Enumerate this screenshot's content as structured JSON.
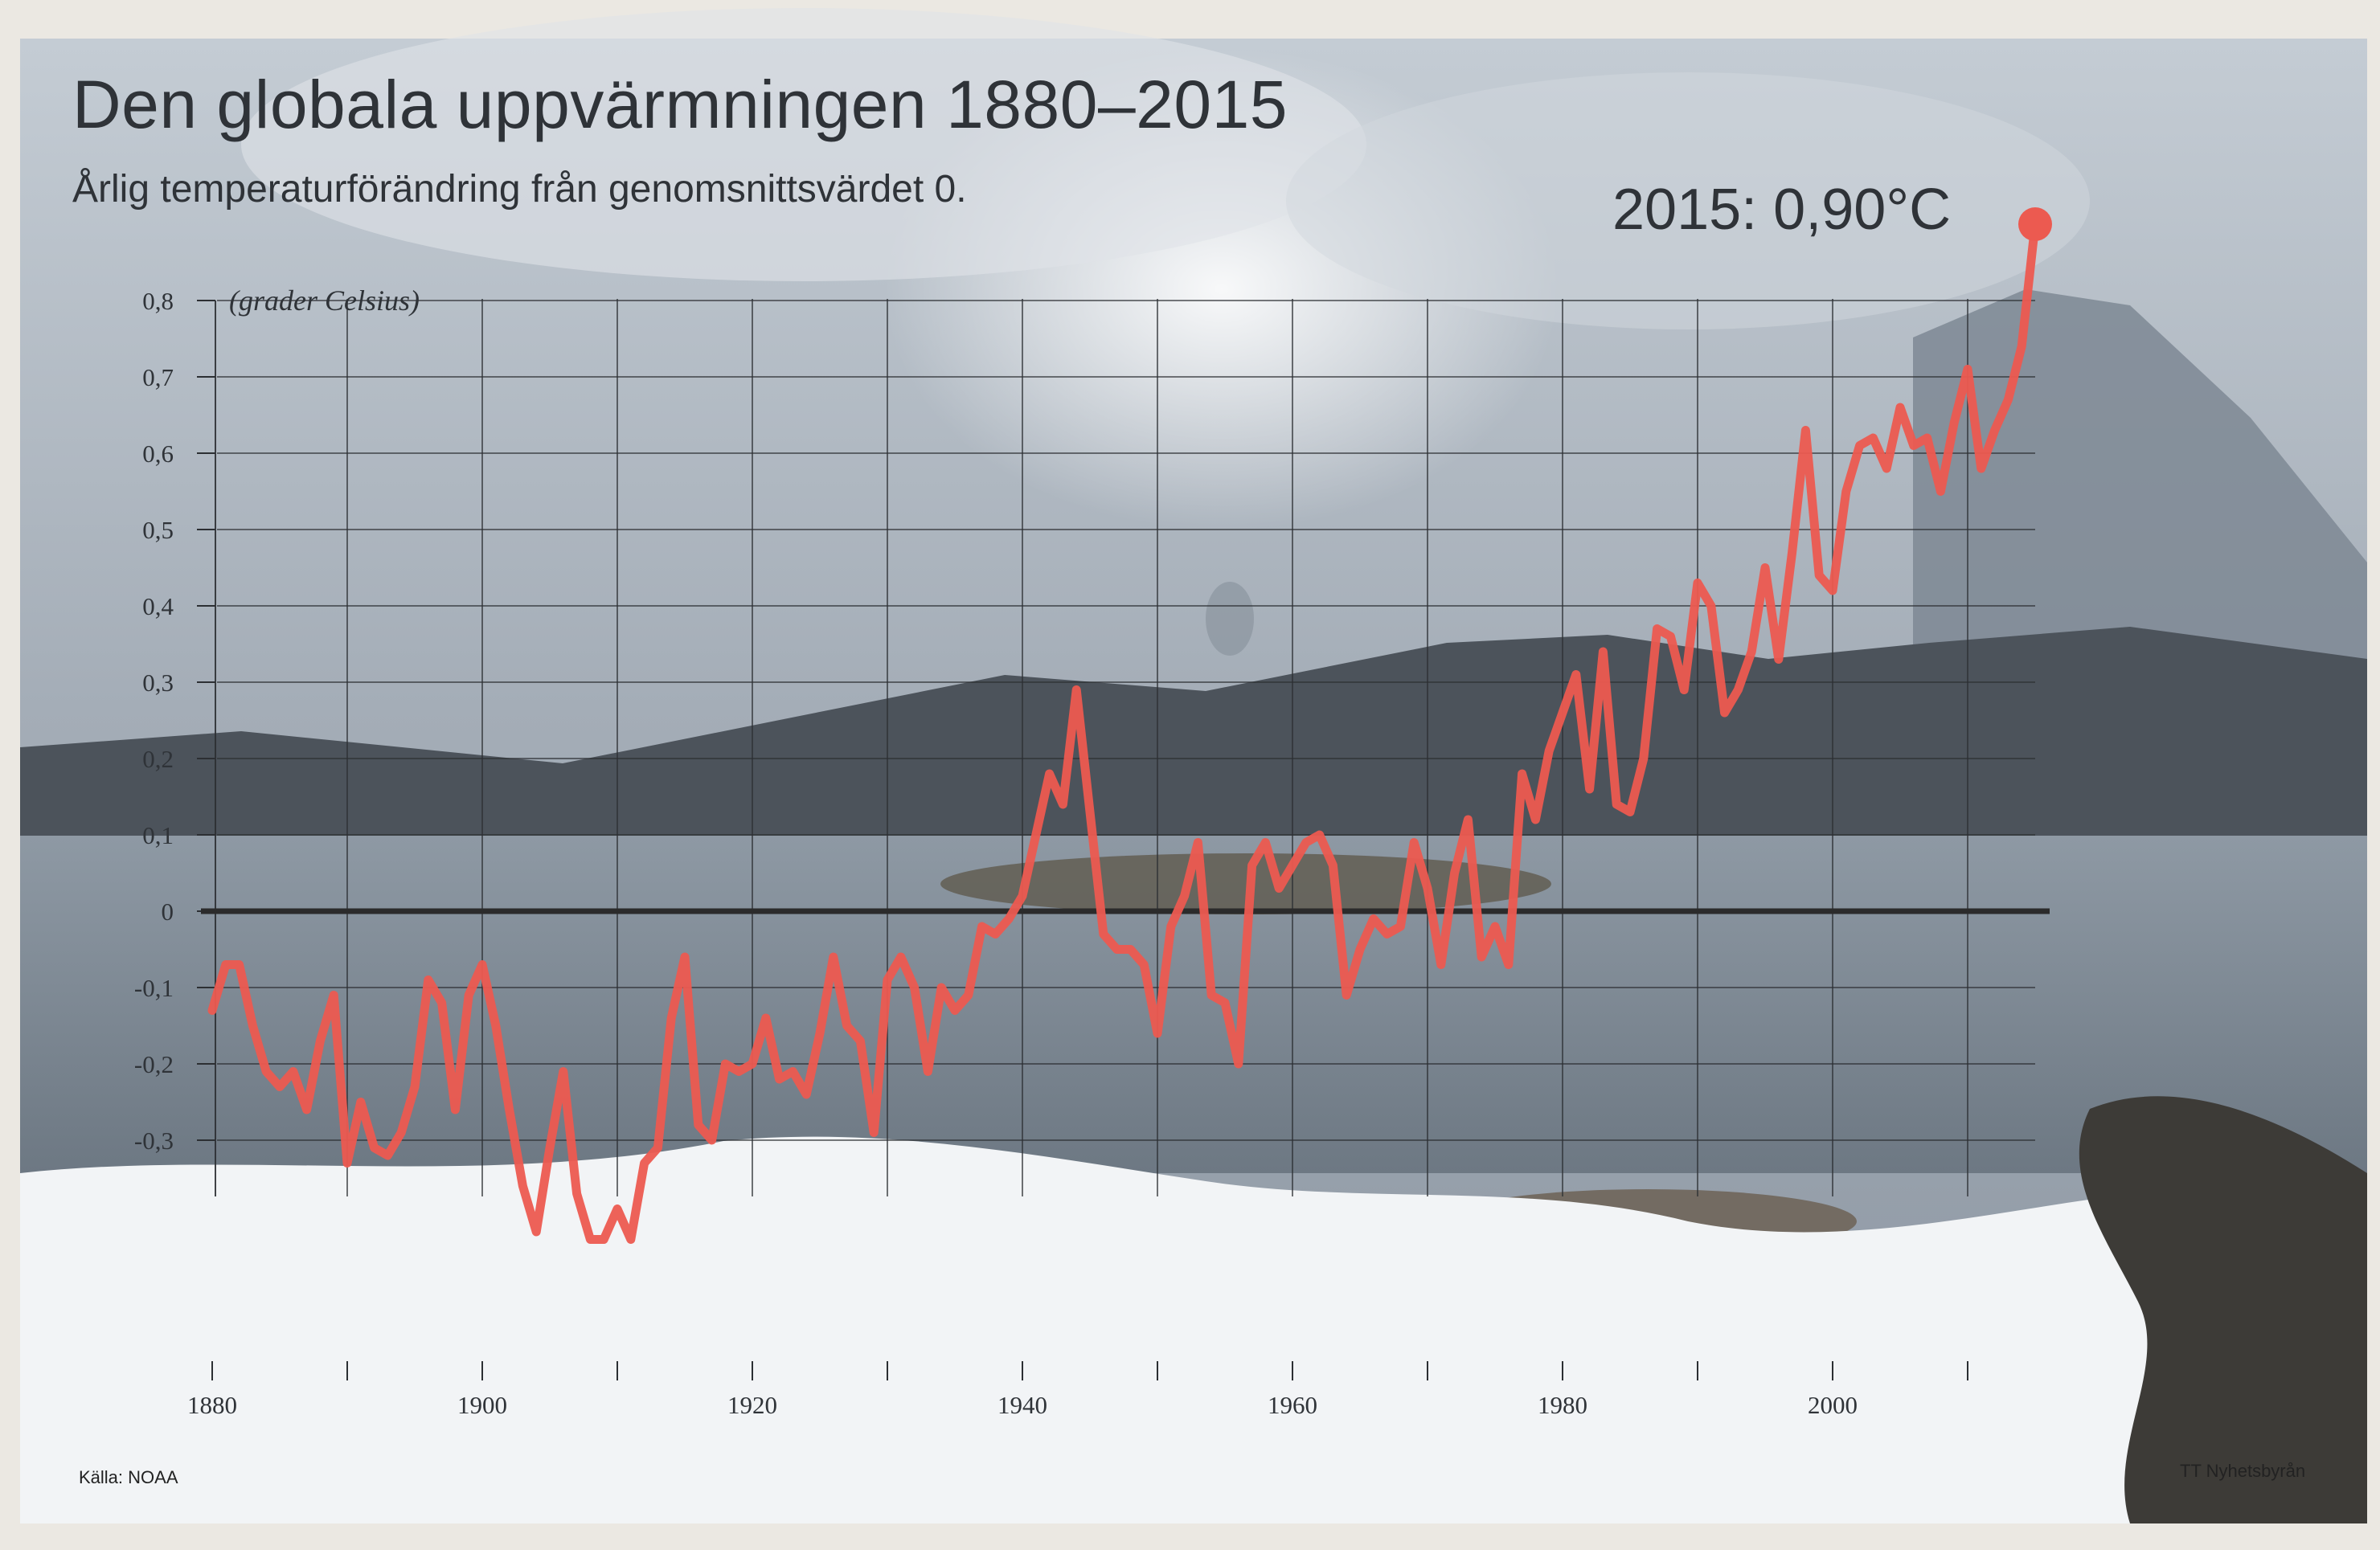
{
  "title": "Den globala uppvärmningen 1880–2015",
  "subtitle": "Årlig temperaturförändring från genomsnittsvärdet 0.",
  "callout": "2015: 0,90°C",
  "source": "Källa: NOAA",
  "credit": "TT Nyhetsbyrån",
  "colors": {
    "line": "#ec5a50",
    "axis": "#2b2b2b",
    "grid": "#2c2f33",
    "text": "#2f3338"
  },
  "chart_data": {
    "type": "line",
    "title": "Den globala uppvärmningen 1880–2015",
    "subtitle": "Årlig temperaturförändring från genomsnittsvärdet 0.",
    "ylabel": "(grader Celsius)",
    "xlabel": "",
    "xlim": [
      1880,
      2015
    ],
    "ylim": [
      -0.4,
      0.8
    ],
    "grid": true,
    "x_ticks": [
      1880,
      1900,
      1920,
      1940,
      1960,
      1980,
      2000
    ],
    "y_ticks": [
      {
        "value": 0.8,
        "label": "0,8"
      },
      {
        "value": 0.7,
        "label": "0,7"
      },
      {
        "value": 0.6,
        "label": "0,6"
      },
      {
        "value": 0.5,
        "label": "0,5"
      },
      {
        "value": 0.4,
        "label": "0,4"
      },
      {
        "value": 0.3,
        "label": "0,3"
      },
      {
        "value": 0.2,
        "label": "0,2"
      },
      {
        "value": 0.1,
        "label": "0,1"
      },
      {
        "value": 0,
        "label": "0"
      },
      {
        "value": -0.1,
        "label": "-0,1"
      },
      {
        "value": -0.2,
        "label": "-0,2"
      },
      {
        "value": -0.3,
        "label": "-0,3"
      }
    ],
    "highlight": {
      "x": 2015,
      "y": 0.9,
      "label": "2015: 0,90°C"
    },
    "series": [
      {
        "x": [
          1880,
          1881,
          1882,
          1883,
          1884,
          1885,
          1886,
          1887,
          1888,
          1889,
          1890,
          1891,
          1892,
          1893,
          1894,
          1895,
          1896,
          1897,
          1898,
          1899,
          1900,
          1901,
          1902,
          1903,
          1904,
          1905,
          1906,
          1907,
          1908,
          1909,
          1910,
          1911,
          1912,
          1913,
          1914,
          1915,
          1916,
          1917,
          1918,
          1919,
          1920,
          1921,
          1922,
          1923,
          1924,
          1925,
          1926,
          1927,
          1928,
          1929,
          1930,
          1931,
          1932,
          1933,
          1934,
          1935,
          1936,
          1937,
          1938,
          1939,
          1940,
          1941,
          1942,
          1943,
          1944,
          1945,
          1946,
          1947,
          1948,
          1949,
          1950,
          1951,
          1952,
          1953,
          1954,
          1955,
          1956,
          1957,
          1958,
          1959,
          1960,
          1961,
          1962,
          1963,
          1964,
          1965,
          1966,
          1967,
          1968,
          1969,
          1970,
          1971,
          1972,
          1973,
          1974,
          1975,
          1976,
          1977,
          1978,
          1979,
          1980,
          1981,
          1982,
          1983,
          1984,
          1985,
          1986,
          1987,
          1988,
          1989,
          1990,
          1991,
          1992,
          1993,
          1994,
          1995,
          1996,
          1997,
          1998,
          1999,
          2000,
          2001,
          2002,
          2003,
          2004,
          2005,
          2006,
          2007,
          2008,
          2009,
          2010,
          2011,
          2012,
          2013,
          2014,
          2015
        ],
        "y": [
          -0.13,
          -0.07,
          -0.07,
          -0.15,
          -0.21,
          -0.23,
          -0.21,
          -0.26,
          -0.17,
          -0.11,
          -0.33,
          -0.25,
          -0.31,
          -0.32,
          -0.29,
          -0.23,
          -0.09,
          -0.12,
          -0.26,
          -0.11,
          -0.07,
          -0.15,
          -0.26,
          -0.36,
          -0.42,
          -0.31,
          -0.21,
          -0.37,
          -0.43,
          -0.43,
          -0.39,
          -0.43,
          -0.33,
          -0.31,
          -0.14,
          -0.06,
          -0.28,
          -0.3,
          -0.2,
          -0.21,
          -0.2,
          -0.14,
          -0.22,
          -0.21,
          -0.24,
          -0.16,
          -0.06,
          -0.15,
          -0.17,
          -0.29,
          -0.09,
          -0.06,
          -0.1,
          -0.21,
          -0.1,
          -0.13,
          -0.11,
          -0.02,
          -0.03,
          -0.01,
          0.02,
          0.1,
          0.18,
          0.14,
          0.29,
          0.13,
          -0.03,
          -0.05,
          -0.05,
          -0.07,
          -0.16,
          -0.02,
          0.02,
          0.09,
          -0.11,
          -0.12,
          -0.2,
          0.06,
          0.09,
          0.03,
          0.06,
          0.09,
          0.1,
          0.06,
          -0.11,
          -0.05,
          -0.01,
          -0.03,
          -0.02,
          0.09,
          0.03,
          -0.07,
          0.05,
          0.12,
          -0.06,
          -0.02,
          -0.07,
          0.18,
          0.12,
          0.21,
          0.26,
          0.31,
          0.16,
          0.34,
          0.14,
          0.13,
          0.2,
          0.37,
          0.36,
          0.29,
          0.43,
          0.4,
          0.26,
          0.29,
          0.34,
          0.45,
          0.33,
          0.47,
          0.63,
          0.44,
          0.42,
          0.55,
          0.61,
          0.62,
          0.58,
          0.66,
          0.61,
          0.62,
          0.55,
          0.64,
          0.71,
          0.58,
          0.63,
          0.67,
          0.74,
          0.9
        ]
      }
    ]
  }
}
